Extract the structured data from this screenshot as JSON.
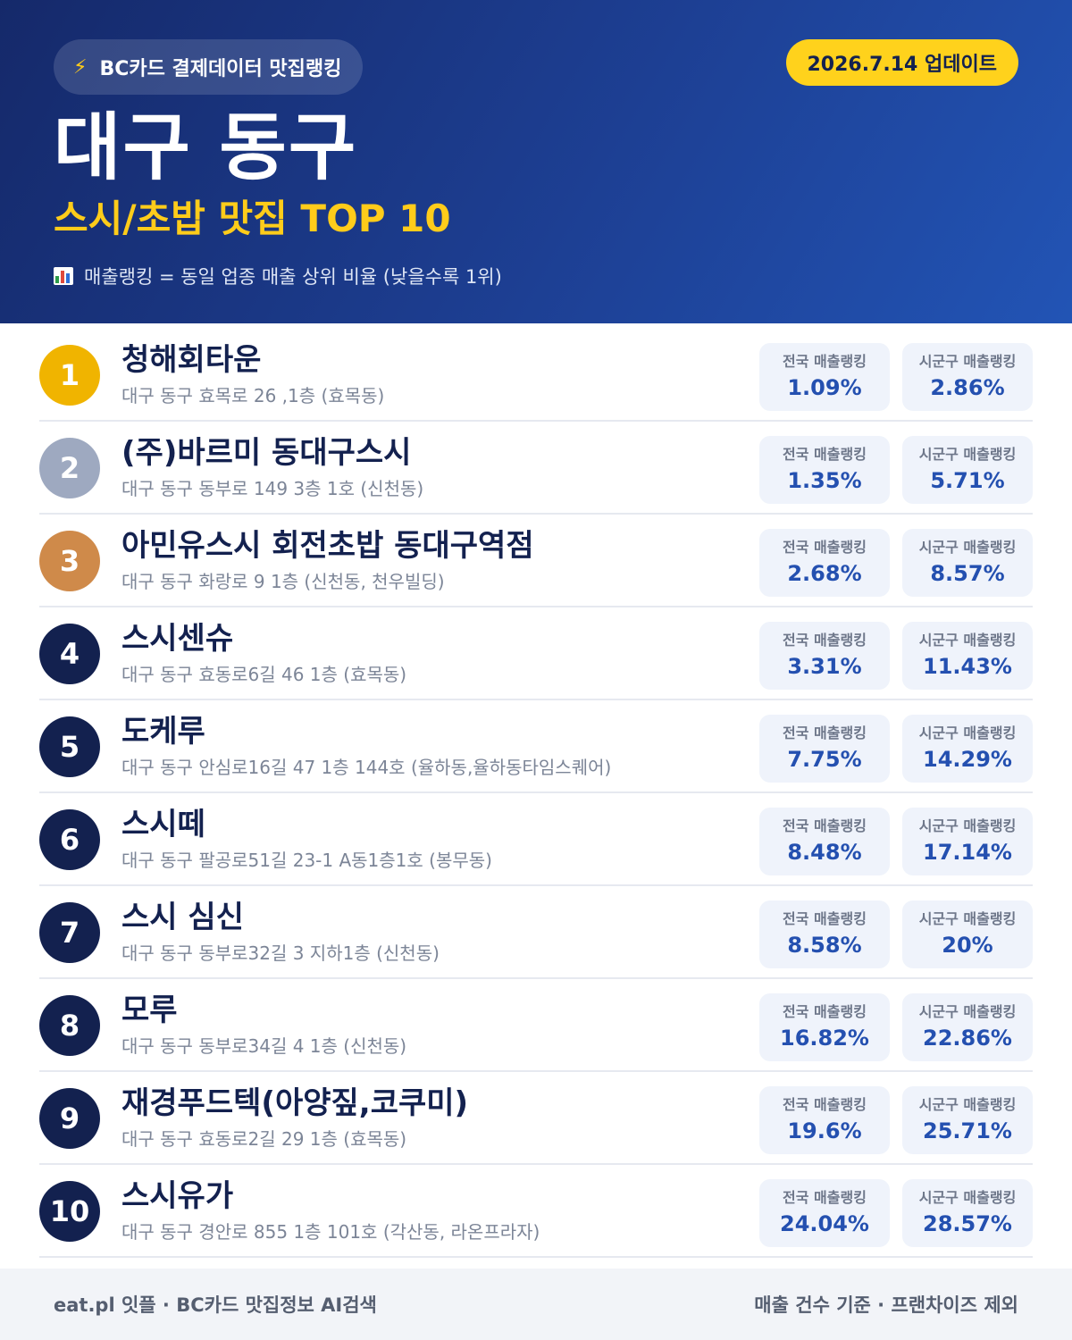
{
  "header": {
    "badge_icon": "lightning-icon",
    "badge_text": "BC카드 결제데이터 맛집랭킹",
    "update_text": "2026.7.14 업데이트",
    "title": "대구 동구",
    "subtitle": "스시/초밥 맛집 TOP 10",
    "note_icon": "bar-chart-icon",
    "note_text": "매출랭킹 = 동일 업종 매출 상위 비율 (낮을수록 1위)"
  },
  "labels": {
    "national": "전국 매출랭킹",
    "local": "시군구 매출랭킹"
  },
  "colors": {
    "header_dark": "#15296a",
    "header_light": "#2254b5",
    "accent_yellow": "#ffd21c",
    "rank_gold": "#f0b400",
    "rank_silver": "#9ea9c0",
    "rank_bronze": "#cf8a4a",
    "rank_default": "#13214f",
    "value_blue": "#2450b0"
  },
  "restaurants": [
    {
      "rank": "1",
      "name": "청해회타운",
      "address": "대구 동구 효목로 26 ,1층 (효목동)",
      "national": "1.09%",
      "local": "2.86%"
    },
    {
      "rank": "2",
      "name": "(주)바르미 동대구스시",
      "address": "대구 동구 동부로 149 3층 1호 (신천동)",
      "national": "1.35%",
      "local": "5.71%"
    },
    {
      "rank": "3",
      "name": "아민유스시 회전초밥 동대구역점",
      "address": "대구 동구 화랑로 9 1층 (신천동, 천우빌딩)",
      "national": "2.68%",
      "local": "8.57%"
    },
    {
      "rank": "4",
      "name": "스시센슈",
      "address": "대구 동구 효동로6길 46 1층 (효목동)",
      "national": "3.31%",
      "local": "11.43%"
    },
    {
      "rank": "5",
      "name": "도케루",
      "address": "대구 동구 안심로16길 47 1층 144호 (율하동,율하동타임스퀘어)",
      "national": "7.75%",
      "local": "14.29%"
    },
    {
      "rank": "6",
      "name": "스시떼",
      "address": "대구 동구 팔공로51길 23-1 A동1층1호 (봉무동)",
      "national": "8.48%",
      "local": "17.14%"
    },
    {
      "rank": "7",
      "name": "스시 심신",
      "address": "대구 동구 동부로32길 3 지하1층 (신천동)",
      "national": "8.58%",
      "local": "20%"
    },
    {
      "rank": "8",
      "name": "모루",
      "address": "대구 동구 동부로34길 4 1층 (신천동)",
      "national": "16.82%",
      "local": "22.86%"
    },
    {
      "rank": "9",
      "name": "재경푸드텍(아양짚,코쿠미)",
      "address": "대구 동구 효동로2길 29 1층 (효목동)",
      "national": "19.6%",
      "local": "25.71%"
    },
    {
      "rank": "10",
      "name": "스시유가",
      "address": "대구 동구 경안로 855 1층 101호 (각산동, 라온프라자)",
      "national": "24.04%",
      "local": "28.57%"
    }
  ],
  "footer": {
    "left": "eat.pl 잇플 · BC카드 맛집정보 AI검색",
    "right": "매출 건수 기준 · 프랜차이즈 제외"
  }
}
